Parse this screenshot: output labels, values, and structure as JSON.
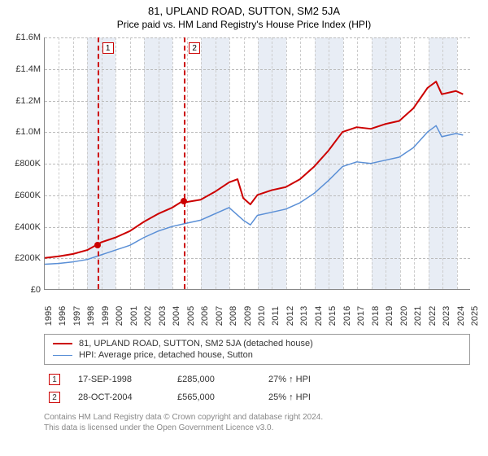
{
  "title": "81, UPLAND ROAD, SUTTON, SM2 5JA",
  "subtitle": "Price paid vs. HM Land Registry's House Price Index (HPI)",
  "chart": {
    "type": "line",
    "xlim": [
      1995,
      2025
    ],
    "ylim": [
      0,
      1600000
    ],
    "ytick_step": 200000,
    "yticks": [
      "£0",
      "£200K",
      "£400K",
      "£600K",
      "£800K",
      "£1.0M",
      "£1.2M",
      "£1.4M",
      "£1.6M"
    ],
    "xtick_step": 1,
    "background_color": "#ffffff",
    "grid_color": "#bbbbbb",
    "band_color": "#e8edf5",
    "bands": [
      [
        1998,
        2000
      ],
      [
        2002,
        2004
      ],
      [
        2006,
        2008
      ],
      [
        2010,
        2012
      ],
      [
        2014,
        2016
      ],
      [
        2018,
        2020
      ],
      [
        2022,
        2024
      ]
    ],
    "series": [
      {
        "name": "81, UPLAND ROAD, SUTTON, SM2 5JA (detached house)",
        "color": "#cc0000",
        "width": 2,
        "data": [
          [
            1995,
            200000
          ],
          [
            1996,
            210000
          ],
          [
            1997,
            225000
          ],
          [
            1998,
            250000
          ],
          [
            1998.7,
            285000
          ],
          [
            1999,
            300000
          ],
          [
            2000,
            330000
          ],
          [
            2001,
            370000
          ],
          [
            2002,
            430000
          ],
          [
            2003,
            480000
          ],
          [
            2004,
            520000
          ],
          [
            2004.8,
            565000
          ],
          [
            2005,
            555000
          ],
          [
            2006,
            570000
          ],
          [
            2007,
            620000
          ],
          [
            2008,
            680000
          ],
          [
            2008.6,
            700000
          ],
          [
            2009,
            580000
          ],
          [
            2009.5,
            540000
          ],
          [
            2010,
            600000
          ],
          [
            2011,
            630000
          ],
          [
            2012,
            650000
          ],
          [
            2013,
            700000
          ],
          [
            2014,
            780000
          ],
          [
            2015,
            880000
          ],
          [
            2016,
            1000000
          ],
          [
            2017,
            1030000
          ],
          [
            2018,
            1020000
          ],
          [
            2019,
            1050000
          ],
          [
            2020,
            1070000
          ],
          [
            2021,
            1150000
          ],
          [
            2022,
            1280000
          ],
          [
            2022.6,
            1320000
          ],
          [
            2023,
            1240000
          ],
          [
            2024,
            1260000
          ],
          [
            2024.5,
            1240000
          ]
        ]
      },
      {
        "name": "HPI: Average price, detached house, Sutton",
        "color": "#5a8fd6",
        "width": 1.5,
        "data": [
          [
            1995,
            160000
          ],
          [
            1996,
            165000
          ],
          [
            1997,
            175000
          ],
          [
            1998,
            190000
          ],
          [
            1999,
            220000
          ],
          [
            2000,
            250000
          ],
          [
            2001,
            280000
          ],
          [
            2002,
            330000
          ],
          [
            2003,
            370000
          ],
          [
            2004,
            400000
          ],
          [
            2005,
            420000
          ],
          [
            2006,
            440000
          ],
          [
            2007,
            480000
          ],
          [
            2008,
            520000
          ],
          [
            2009,
            440000
          ],
          [
            2009.5,
            410000
          ],
          [
            2010,
            470000
          ],
          [
            2011,
            490000
          ],
          [
            2012,
            510000
          ],
          [
            2013,
            550000
          ],
          [
            2014,
            610000
          ],
          [
            2015,
            690000
          ],
          [
            2016,
            780000
          ],
          [
            2017,
            810000
          ],
          [
            2018,
            800000
          ],
          [
            2019,
            820000
          ],
          [
            2020,
            840000
          ],
          [
            2021,
            900000
          ],
          [
            2022,
            1000000
          ],
          [
            2022.6,
            1040000
          ],
          [
            2023,
            970000
          ],
          [
            2024,
            990000
          ],
          [
            2024.5,
            980000
          ]
        ]
      }
    ],
    "sale_markers": [
      {
        "n": "1",
        "x": 1998.7,
        "y": 285000
      },
      {
        "n": "2",
        "x": 2004.8,
        "y": 565000
      }
    ]
  },
  "legend": {
    "line1": "81, UPLAND ROAD, SUTTON, SM2 5JA (detached house)",
    "line2": "HPI: Average price, detached house, Sutton"
  },
  "sales": [
    {
      "n": "1",
      "date": "17-SEP-1998",
      "price": "£285,000",
      "pct": "27% ↑ HPI"
    },
    {
      "n": "2",
      "date": "28-OCT-2004",
      "price": "£565,000",
      "pct": "25% ↑ HPI"
    }
  ],
  "footer1": "Contains HM Land Registry data © Crown copyright and database right 2024.",
  "footer2": "This data is licensed under the Open Government Licence v3.0."
}
